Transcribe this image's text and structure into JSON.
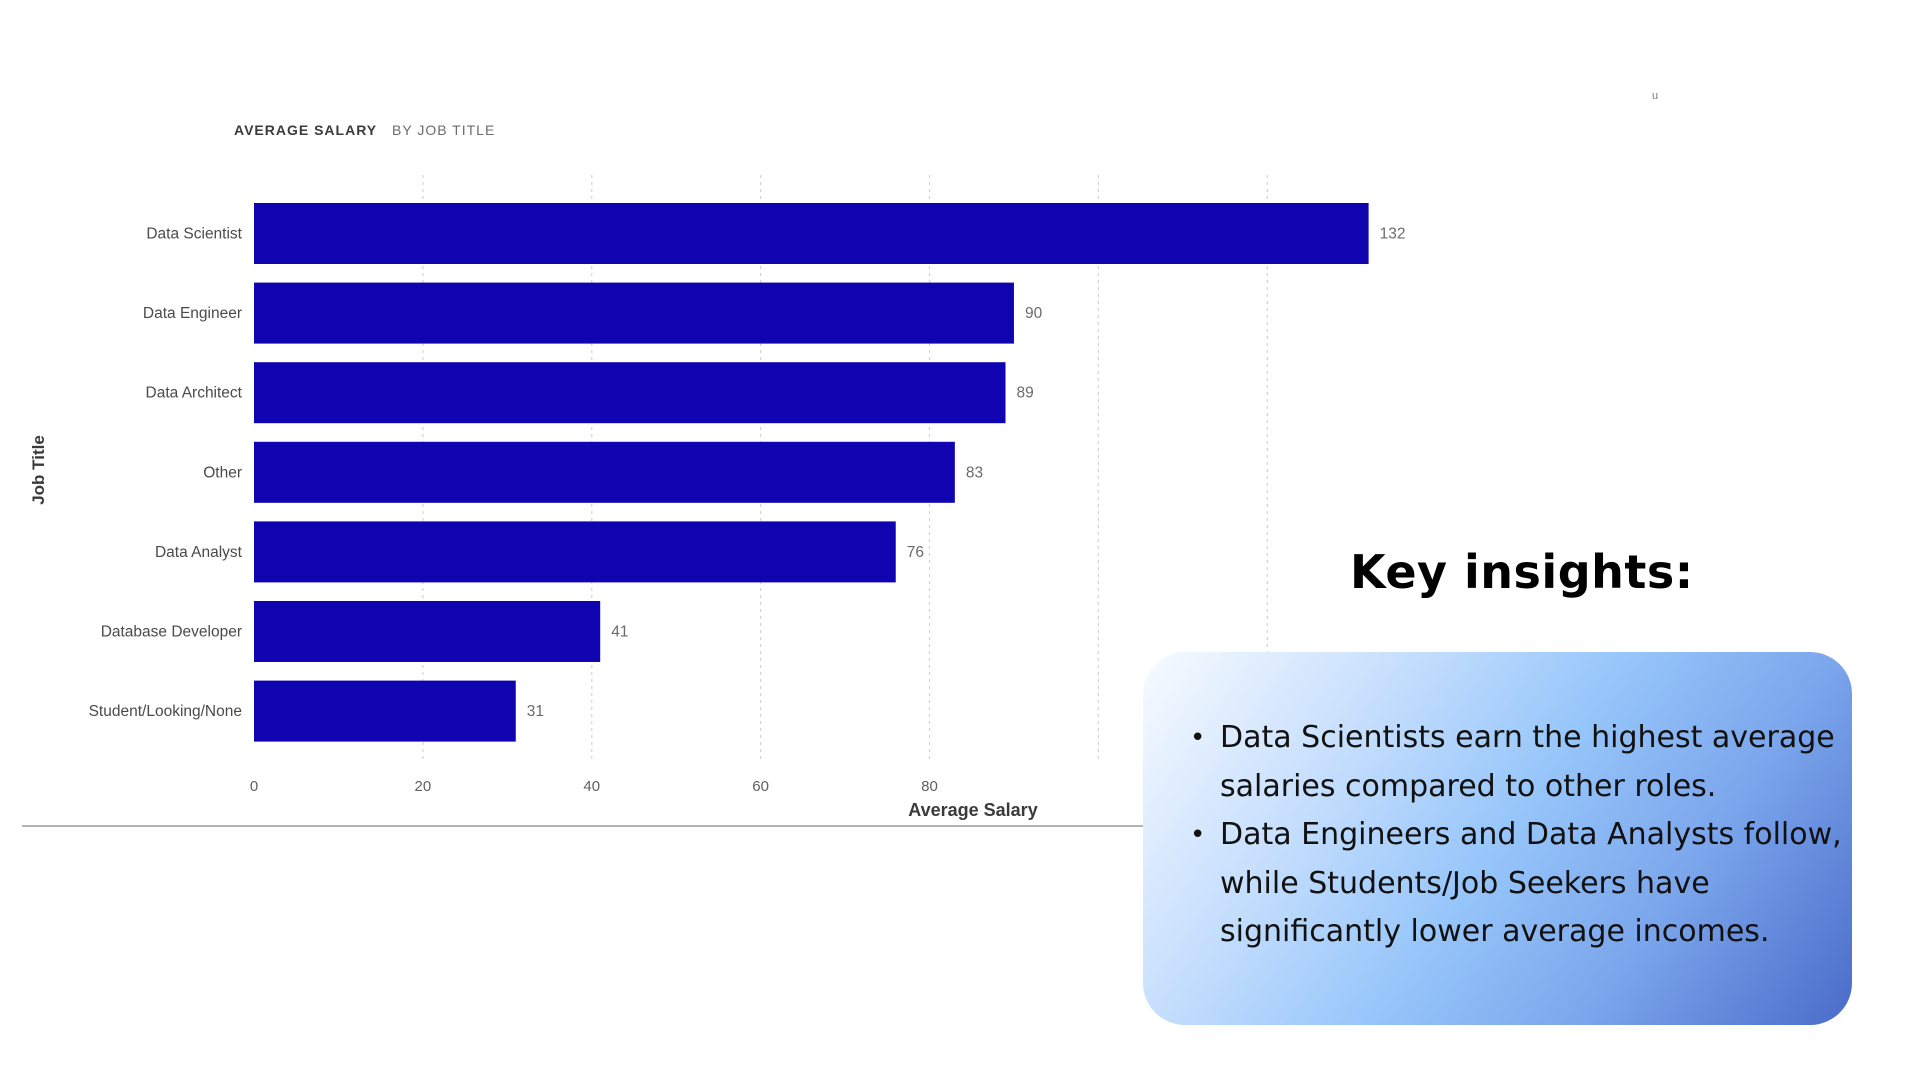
{
  "chart_data": {
    "type": "bar",
    "orientation": "horizontal",
    "title": "AVERAGE SALARY",
    "subtitle": "BY JOB TITLE",
    "xlabel": "Average Salary",
    "ylabel": "Job Title",
    "categories": [
      "Data Scientist",
      "Data Engineer",
      "Data Architect",
      "Other",
      "Data Analyst",
      "Database Developer",
      "Student/Looking/None"
    ],
    "values": [
      132,
      90,
      89,
      83,
      76,
      41,
      31
    ],
    "data_labels": [
      "132",
      "90",
      "89",
      "83",
      "76",
      "41",
      "31"
    ],
    "xlim": [
      0,
      140
    ],
    "x_ticks": [
      0,
      20,
      40,
      60,
      80,
      100,
      120
    ],
    "x_tick_labels": [
      "0",
      "20",
      "40",
      "60",
      "80",
      "",
      ""
    ],
    "grid": true,
    "bar_color": "#1004b0"
  },
  "corner_mark": "u",
  "insights": {
    "title": "Key insights:",
    "bullet_symbol": "•",
    "items": [
      "Data Scientists earn the highest average salaries compared to other roles.",
      "Data Engineers and Data Analysts follow, while Students/Job Seekers have significantly lower average incomes."
    ]
  }
}
